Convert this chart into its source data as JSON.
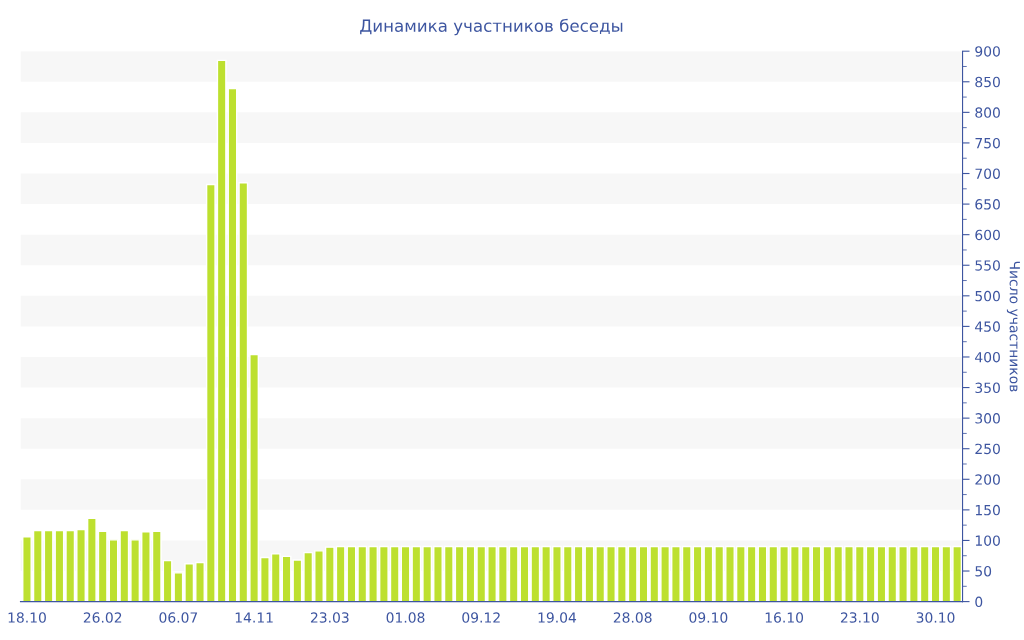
{
  "chart_data": {
    "type": "bar",
    "title": "Динамика участников беседы",
    "ylabel": "Число участников",
    "categories": [
      "18.10",
      null,
      null,
      null,
      null,
      null,
      null,
      "26.02",
      null,
      null,
      null,
      null,
      null,
      null,
      "06.07",
      null,
      null,
      null,
      null,
      null,
      null,
      "14.11",
      null,
      null,
      null,
      null,
      null,
      null,
      "23.03",
      null,
      null,
      null,
      null,
      null,
      null,
      "01.08",
      null,
      null,
      null,
      null,
      null,
      null,
      "09.12",
      null,
      null,
      null,
      null,
      null,
      null,
      "19.04",
      null,
      null,
      null,
      null,
      null,
      null,
      "28.08",
      null,
      null,
      null,
      null,
      null,
      null,
      "09.10",
      null,
      null,
      null,
      null,
      null,
      null,
      "16.10",
      null,
      null,
      null,
      null,
      null,
      null,
      "23.10",
      null,
      null,
      null,
      null,
      null,
      null,
      "30.10",
      null,
      null
    ],
    "values": [
      106,
      116,
      116,
      116,
      116,
      118,
      136,
      115,
      101,
      116,
      101,
      114,
      115,
      67,
      47,
      62,
      64,
      682,
      885,
      839,
      685,
      404,
      72,
      78,
      74,
      68,
      80,
      83,
      89,
      90,
      90,
      90,
      90,
      90,
      90,
      90,
      90,
      90,
      90,
      90,
      90,
      90,
      90,
      90,
      90,
      90,
      90,
      90,
      90,
      90,
      90,
      90,
      90,
      90,
      90,
      90,
      90,
      90,
      90,
      90,
      90,
      90,
      90,
      90,
      90,
      90,
      90,
      90,
      90,
      90,
      90,
      90,
      90,
      90,
      90,
      90,
      90,
      90,
      90,
      90,
      90,
      90,
      90,
      90,
      90,
      90,
      90
    ],
    "color": "#bde02f",
    "ylim": [
      0,
      900
    ],
    "yticks": [
      0,
      50,
      100,
      150,
      200,
      250,
      300,
      350,
      400,
      450,
      500,
      550,
      600,
      650,
      700,
      750,
      800,
      850,
      900
    ],
    "bands": [
      {
        "axis": "y",
        "from": 50,
        "to": 100,
        "color": "#f7f7f7"
      },
      {
        "axis": "y",
        "from": 150,
        "to": 200,
        "color": "#f7f7f7"
      },
      {
        "axis": "y",
        "from": 250,
        "to": 300,
        "color": "#f7f7f7"
      },
      {
        "axis": "y",
        "from": 350,
        "to": 400,
        "color": "#f7f7f7"
      },
      {
        "axis": "y",
        "from": 450,
        "to": 500,
        "color": "#f7f7f7"
      },
      {
        "axis": "y",
        "from": 550,
        "to": 600,
        "color": "#f7f7f7"
      },
      {
        "axis": "y",
        "from": 650,
        "to": 700,
        "color": "#f7f7f7"
      },
      {
        "axis": "y",
        "from": 750,
        "to": 800,
        "color": "#f7f7f7"
      },
      {
        "axis": "y",
        "from": 850,
        "to": 900,
        "color": "#f7f7f7"
      }
    ]
  }
}
